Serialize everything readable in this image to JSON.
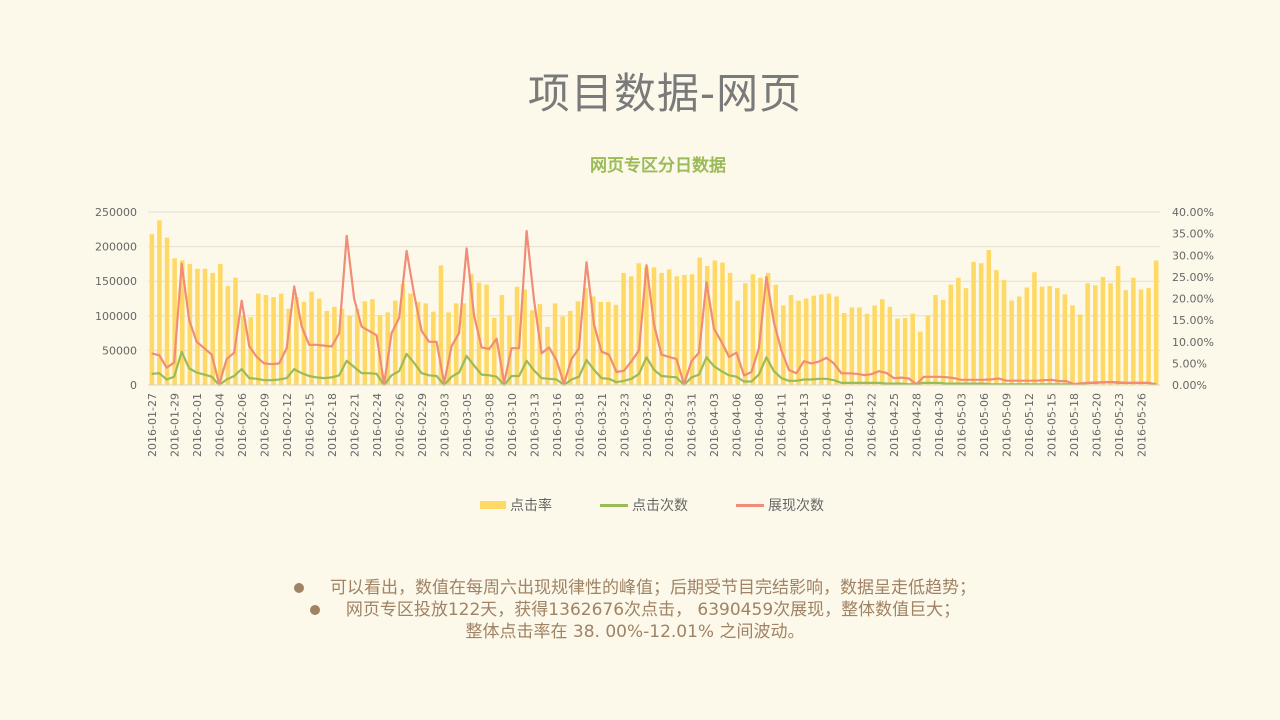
{
  "page": {
    "title": "项目数据-网页"
  },
  "chart_data": {
    "type": "bar",
    "title": "网页专区分日数据",
    "legend_position": "bottom",
    "grid": true,
    "y_left_ticks": [
      "0",
      "50000",
      "100000",
      "150000",
      "200000",
      "250000"
    ],
    "y_left_range": [
      0,
      250000
    ],
    "y_right_ticks": [
      "0.00%",
      "5.00%",
      "10.00%",
      "15.00%",
      "20.00%",
      "25.00%",
      "30.00%",
      "35.00%",
      "40.00%"
    ],
    "y_right_range": [
      0,
      0.4
    ],
    "x_tick_labels": [
      "2016-01-27",
      "2016-01-29",
      "2016-02-01",
      "2016-02-04",
      "2016-02-06",
      "2016-02-09",
      "2016-02-12",
      "2016-02-15",
      "2016-02-18",
      "2016-02-21",
      "2016-02-24",
      "2016-02-26",
      "2016-02-29",
      "2016-03-03",
      "2016-03-05",
      "2016-03-08",
      "2016-03-10",
      "2016-03-13",
      "2016-03-16",
      "2016-03-18",
      "2016-03-21",
      "2016-03-23",
      "2016-03-26",
      "2016-03-29",
      "2016-03-31",
      "2016-04-03",
      "2016-04-06",
      "2016-04-08",
      "2016-04-11",
      "2016-04-13",
      "2016-04-16",
      "2016-04-19",
      "2016-04-22",
      "2016-04-25",
      "2016-04-28",
      "2016-04-30",
      "2016-05-03",
      "2016-05-06",
      "2016-05-09",
      "2016-05-12",
      "2016-05-15",
      "2016-05-18",
      "2016-05-20",
      "2016-05-23",
      "2016-05-26"
    ],
    "series": [
      {
        "name": "点击率",
        "axis": "left",
        "type": "bar",
        "color": "#ffd966",
        "values": [
          218000,
          238000,
          213000,
          183000,
          180000,
          175000,
          168000,
          168000,
          162000,
          175000,
          143000,
          155000,
          100000,
          98000,
          132000,
          130000,
          127000,
          132000,
          110000,
          127000,
          120000,
          135000,
          125000,
          107000,
          113000,
          110000,
          100000,
          110000,
          121000,
          124000,
          101000,
          105000,
          122000,
          146000,
          132000,
          120000,
          118000,
          106000,
          173000,
          105000,
          118000,
          118000,
          160000,
          148000,
          145000,
          97000,
          130000,
          100000,
          142000,
          138000,
          108000,
          117000,
          84000,
          118000,
          99000,
          107000,
          121000,
          140000,
          128000,
          120000,
          120000,
          116000,
          162000,
          157000,
          176000,
          170000,
          170000,
          162000,
          167000,
          157000,
          159000,
          160000,
          184000,
          172000,
          180000,
          177000,
          162000,
          122000,
          147000,
          160000,
          155000,
          162000,
          145000,
          115000,
          130000,
          122000,
          125000,
          129000,
          131000,
          132000,
          128000,
          104000,
          112000,
          112000,
          103000,
          115000,
          124000,
          113000,
          96000,
          97000,
          103000,
          77000,
          100000,
          130000,
          123000,
          145000,
          155000,
          140000,
          178000,
          176000,
          195000,
          166000,
          152000,
          122000,
          128000,
          141000,
          163000,
          142000,
          143000,
          140000,
          131000,
          115000,
          102000,
          147000,
          144000,
          156000,
          147000,
          172000,
          137000,
          155000,
          138000,
          140000,
          180000
        ]
      },
      {
        "name": "点击次数",
        "axis": "left",
        "type": "line",
        "color": "#9bbb59",
        "values": [
          16000,
          17000,
          8000,
          12000,
          48000,
          24000,
          18000,
          15000,
          12000,
          0,
          8000,
          13000,
          23000,
          10000,
          9000,
          7000,
          7000,
          8000,
          10000,
          23000,
          17000,
          13000,
          11000,
          10000,
          11000,
          14000,
          35000,
          26000,
          17000,
          17000,
          16000,
          0,
          14000,
          20000,
          45000,
          32000,
          17000,
          14000,
          13000,
          0,
          12000,
          18000,
          42000,
          28000,
          15000,
          14000,
          12000,
          0,
          13000,
          13000,
          35000,
          21000,
          10000,
          9000,
          8000,
          0,
          8000,
          12000,
          36000,
          22000,
          10000,
          9000,
          4000,
          6000,
          9000,
          16000,
          40000,
          22000,
          13000,
          12000,
          11000,
          0,
          11000,
          15000,
          40000,
          27000,
          20000,
          14000,
          12000,
          5000,
          5000,
          15000,
          40000,
          20000,
          10000,
          6000,
          6000,
          8000,
          8000,
          9000,
          9000,
          7000,
          3000,
          3000,
          3000,
          3000,
          3000,
          3000,
          2000,
          2000,
          2000,
          1000,
          2000,
          3000,
          3000,
          3000,
          2000,
          2000,
          2000,
          2000,
          2000,
          2000,
          1000,
          1000,
          1000,
          1000,
          1000,
          1000,
          1000,
          1000,
          1000,
          1000,
          1000,
          1000,
          2000,
          3000,
          3000,
          4000,
          4000,
          3000,
          3000,
          3000,
          3000,
          3000,
          1000
        ]
      },
      {
        "name": "展现次数",
        "axis": "right",
        "type": "line",
        "color": "#f08c78",
        "values": [
          0.073,
          0.069,
          0.04,
          0.052,
          0.28,
          0.15,
          0.1,
          0.085,
          0.07,
          0.002,
          0.06,
          0.075,
          0.195,
          0.09,
          0.065,
          0.05,
          0.048,
          0.05,
          0.085,
          0.228,
          0.135,
          0.093,
          0.093,
          0.091,
          0.089,
          0.12,
          0.345,
          0.2,
          0.135,
          0.125,
          0.115,
          0.002,
          0.12,
          0.155,
          0.31,
          0.21,
          0.125,
          0.1,
          0.1,
          0.005,
          0.09,
          0.12,
          0.316,
          0.16,
          0.087,
          0.083,
          0.107,
          0.005,
          0.085,
          0.085,
          0.356,
          0.195,
          0.073,
          0.087,
          0.057,
          0.003,
          0.06,
          0.085,
          0.284,
          0.14,
          0.077,
          0.07,
          0.03,
          0.033,
          0.055,
          0.08,
          0.277,
          0.14,
          0.07,
          0.065,
          0.06,
          0.002,
          0.055,
          0.075,
          0.238,
          0.13,
          0.1,
          0.065,
          0.075,
          0.022,
          0.03,
          0.085,
          0.25,
          0.145,
          0.08,
          0.035,
          0.027,
          0.055,
          0.05,
          0.054,
          0.063,
          0.05,
          0.027,
          0.027,
          0.026,
          0.023,
          0.025,
          0.032,
          0.028,
          0.016,
          0.017,
          0.015,
          0.002,
          0.019,
          0.019,
          0.019,
          0.018,
          0.016,
          0.012,
          0.012,
          0.012,
          0.012,
          0.013,
          0.015,
          0.01,
          0.01,
          0.01,
          0.01,
          0.01,
          0.011,
          0.012,
          0.009,
          0.009,
          0.002,
          0.004,
          0.005,
          0.006,
          0.006,
          0.007,
          0.006,
          0.005,
          0.005,
          0.005,
          0.005,
          0.001
        ]
      }
    ]
  },
  "notes": [
    {
      "text": "可以看出，数值在每周六出现规律性的峰值；后期受节目完结影响，数据呈走低趋势；",
      "bullet": true
    },
    {
      "text": "网页专区投放122天，获得1362676次点击， 6390459次展现，整体数值巨大；",
      "bullet": true
    },
    {
      "text": "整体点击率在 38. 00%-12.01% 之间波动。",
      "bullet": false
    }
  ]
}
